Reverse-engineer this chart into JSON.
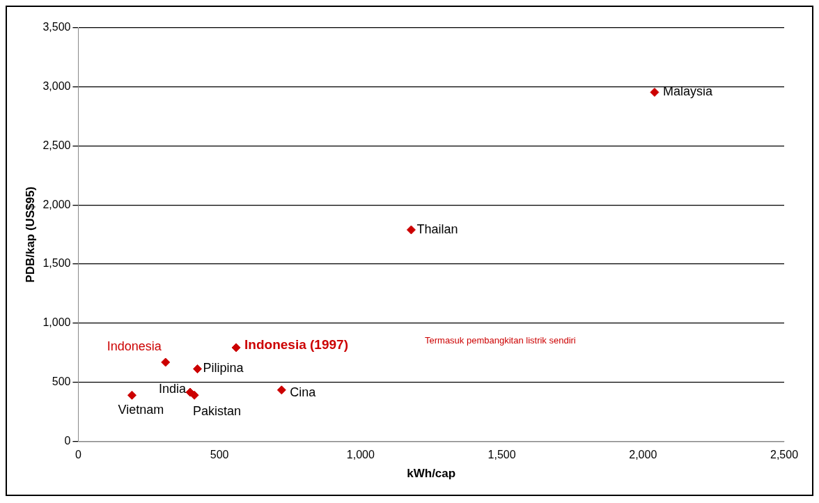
{
  "chart_data": {
    "type": "scatter",
    "xlabel": "kWh/cap",
    "ylabel": "PDB/kap (US$95)",
    "x": [
      2041,
      1179,
      559,
      309,
      422,
      396,
      411,
      190,
      720
    ],
    "values": [
      2955,
      1790,
      793,
      669,
      613,
      415,
      390,
      390,
      434
    ],
    "color": "#cc0000",
    "marker": "diamond",
    "grid": "y",
    "legend": false,
    "xlim": [
      0,
      2500
    ],
    "xticks": [
      0,
      500,
      {
        "value": 1000,
        "label": "1,000"
      },
      {
        "value": 1500,
        "label": "1,500"
      },
      {
        "value": 2000,
        "label": "2,000"
      },
      {
        "value": 2500,
        "label": "2,500"
      }
    ],
    "ylim": [
      0,
      3500
    ],
    "yticks": [
      0,
      500,
      {
        "value": 1000,
        "label": "1,000"
      },
      {
        "value": 1500,
        "label": "1,500"
      },
      {
        "value": 2000,
        "label": "2,000"
      },
      {
        "value": 2500,
        "label": "2,500"
      },
      {
        "value": 3000,
        "label": "3,000"
      },
      {
        "value": 3500,
        "label": "3,500"
      }
    ],
    "annotations": [
      {
        "text": "Malaysia",
        "x": 2041,
        "y": 2955
      },
      {
        "text": "Thailan",
        "x": 1179,
        "y": 1790
      },
      {
        "text": "Indonesia (1997)",
        "x": 559,
        "y": 793
      },
      {
        "text": "Indonesia",
        "x": 309,
        "y": 669
      },
      {
        "text": "Pilipina",
        "x": 422,
        "y": 613
      },
      {
        "text": "India",
        "x": 396,
        "y": 415
      },
      {
        "text": "Pakistan",
        "x": 411,
        "y": 390
      },
      {
        "text": "Vietnam",
        "x": 190,
        "y": 390
      },
      {
        "text": "Cina",
        "x": 720,
        "y": 434
      },
      "Termasuk pembangkitan listrik sendiri"
    ]
  }
}
